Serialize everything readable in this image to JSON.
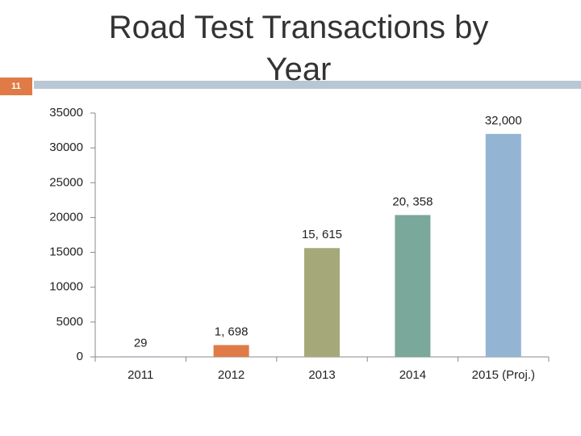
{
  "slide_number": "11",
  "chart_data": {
    "type": "bar",
    "title": "Road Test Transactions by Year",
    "categories": [
      "2011",
      "2012",
      "2013",
      "2014",
      "2015 (Proj.)"
    ],
    "values": [
      29,
      1698,
      15615,
      20358,
      32000
    ],
    "value_labels": [
      "29",
      "1, 698",
      "15, 615",
      "20, 358",
      "32,000"
    ],
    "colors": [
      "#4f81bd",
      "#e07b47",
      "#a5a97a",
      "#7aa89a",
      "#93b4d3"
    ],
    "ylim": [
      0,
      35000
    ],
    "yticks": [
      0,
      5000,
      10000,
      15000,
      20000,
      25000,
      30000,
      35000
    ]
  }
}
